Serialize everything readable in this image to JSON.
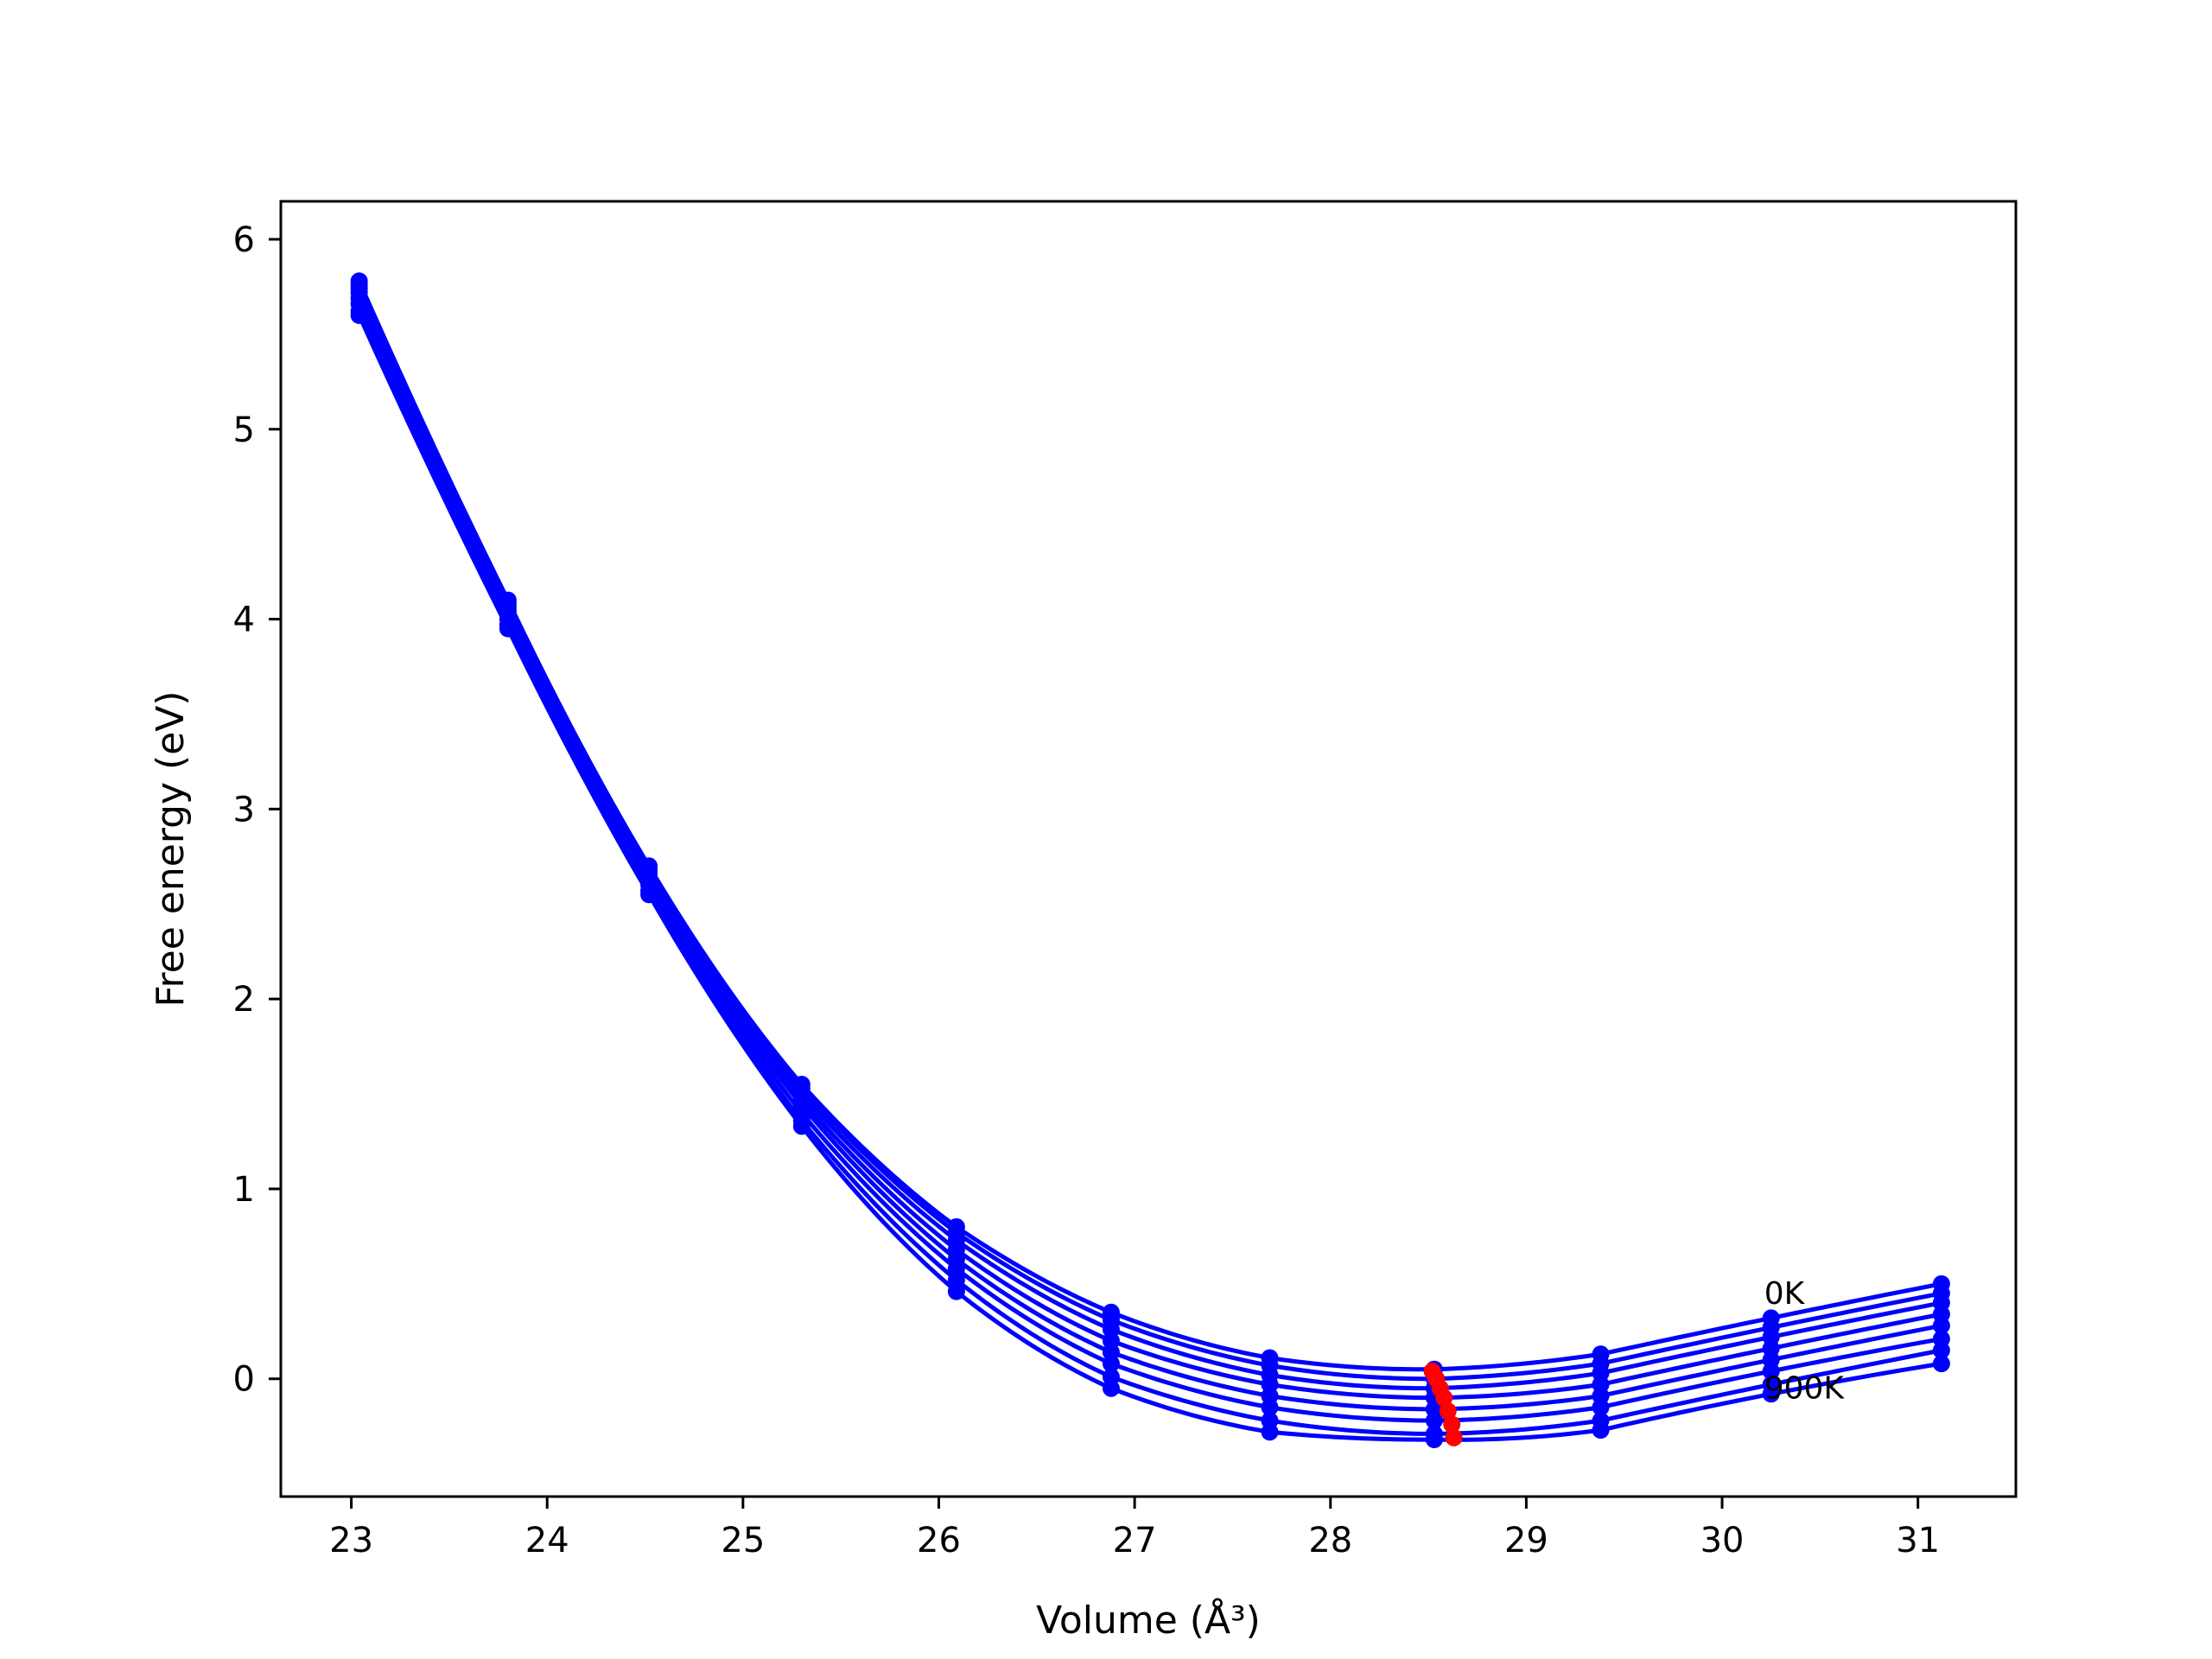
{
  "chart_data": {
    "type": "line",
    "title": "",
    "xlabel": "Volume (Å³)",
    "ylabel": "Free energy (eV)",
    "xlim": [
      22.64,
      31.5
    ],
    "ylim": [
      -0.62,
      6.2
    ],
    "xticks": [
      23,
      24,
      25,
      26,
      27,
      28,
      29,
      30,
      31
    ],
    "yticks": [
      0,
      1,
      2,
      3,
      4,
      5,
      6
    ],
    "grid": false,
    "legend": "none",
    "colors": {
      "curves": "#0000ff",
      "points": "#0000ff",
      "minima": "#ff0000"
    },
    "x": [
      23.04,
      23.8,
      24.52,
      25.3,
      26.09,
      26.88,
      27.69,
      28.53,
      29.38,
      30.25,
      31.12
    ],
    "series": [
      {
        "values": [
          5.78,
          4.1,
          2.7,
          1.55,
          0.8,
          0.35,
          0.11,
          0.05,
          0.13,
          0.32,
          0.5
        ]
      },
      {
        "values": [
          5.76,
          4.08,
          2.68,
          1.53,
          0.77,
          0.31,
          0.07,
          0.0,
          0.08,
          0.27,
          0.45
        ]
      },
      {
        "values": [
          5.74,
          4.06,
          2.66,
          1.5,
          0.73,
          0.26,
          0.02,
          -0.05,
          0.03,
          0.22,
          0.4
        ]
      },
      {
        "values": [
          5.72,
          4.04,
          2.64,
          1.47,
          0.68,
          0.2,
          -0.03,
          -0.1,
          -0.03,
          0.16,
          0.34
        ]
      },
      {
        "values": [
          5.69,
          4.02,
          2.62,
          1.44,
          0.63,
          0.14,
          -0.09,
          -0.16,
          -0.09,
          0.1,
          0.28
        ]
      },
      {
        "values": [
          5.66,
          4.0,
          2.6,
          1.4,
          0.58,
          0.08,
          -0.15,
          -0.22,
          -0.15,
          0.04,
          0.21
        ]
      },
      {
        "values": [
          5.62,
          3.97,
          2.57,
          1.36,
          0.52,
          0.01,
          -0.22,
          -0.29,
          -0.22,
          -0.03,
          0.15
        ]
      },
      {
        "values": [
          5.6,
          3.95,
          2.55,
          1.33,
          0.46,
          -0.05,
          -0.28,
          -0.32,
          -0.27,
          -0.08,
          0.08
        ]
      }
    ],
    "minima": {
      "x": [
        28.52,
        28.54,
        28.56,
        28.58,
        28.6,
        28.62,
        28.63
      ],
      "y": [
        0.04,
        0.0,
        -0.05,
        -0.1,
        -0.17,
        -0.24,
        -0.31
      ]
    },
    "annotations": [
      {
        "text": "0K",
        "x": 30.25,
        "y": 0.45
      },
      {
        "text": "900K",
        "x": 30.25,
        "y": -0.05
      }
    ]
  }
}
